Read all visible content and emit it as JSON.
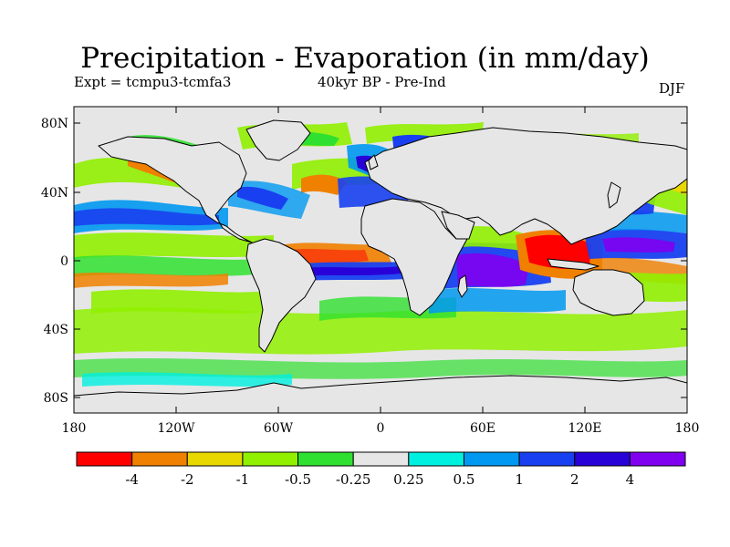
{
  "title": "Precipitation - Evaporation (in mm/day)",
  "experiment": "Expt = tcmpu3-tcmfa3",
  "period": "40kyr BP - Pre-Ind",
  "season": "DJF",
  "lat_ticks": [
    "80N",
    "40N",
    "0",
    "40S",
    "80S"
  ],
  "lon_ticks": [
    "180",
    "120W",
    "60W",
    "0",
    "60E",
    "120E",
    "180"
  ],
  "colorbar": {
    "colors": [
      "#ff0000",
      "#f08000",
      "#e8d800",
      "#90f000",
      "#30e030",
      "#e6e6e6",
      "#00f0e0",
      "#0098f0",
      "#1840f0",
      "#2800d8",
      "#8000f0"
    ],
    "labels": [
      "-4",
      "-2",
      "-1",
      "-0.5",
      "-0.25",
      "0.25",
      "0.5",
      "1",
      "2",
      "4"
    ]
  },
  "colors": {
    "ocean_background": "#e6e6e6",
    "coastline": "#000000"
  }
}
